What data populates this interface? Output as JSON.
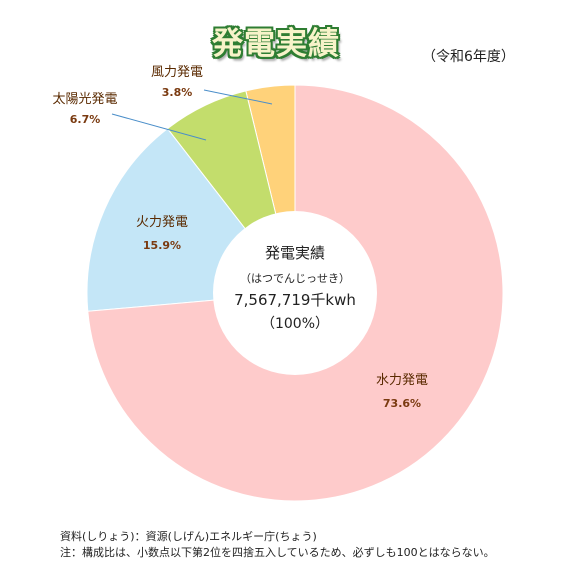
{
  "title": "発電実績",
  "subtitle": "（令和6年度）",
  "footnotes": [
    "資料(しりょう)：資源(しげん)エネルギー庁(ちょう)",
    "注：構成比は、小数点以下第2位を四捨五入しているため、必ずしも100とはならない。"
  ],
  "chart_data": {
    "type": "pie",
    "style": "donut",
    "unit": "%",
    "slices": [
      {
        "name": "風力発電",
        "value": 3.8,
        "label": "3.8%",
        "color": "#ffd27a"
      },
      {
        "name": "太陽光発電",
        "value": 6.7,
        "label": "6.7%",
        "color": "#c3dd6c"
      },
      {
        "name": "火力発電",
        "value": 15.9,
        "label": "15.9%",
        "color": "#c4e6f7"
      },
      {
        "name": "水力発電",
        "value": 73.6,
        "label": "73.6%",
        "color": "#fecbcb"
      }
    ],
    "center": {
      "title": "発電実績",
      "reading": "（はつでんじっせき）",
      "total": "7,567,719千kwh",
      "percent": "（100%）"
    }
  }
}
